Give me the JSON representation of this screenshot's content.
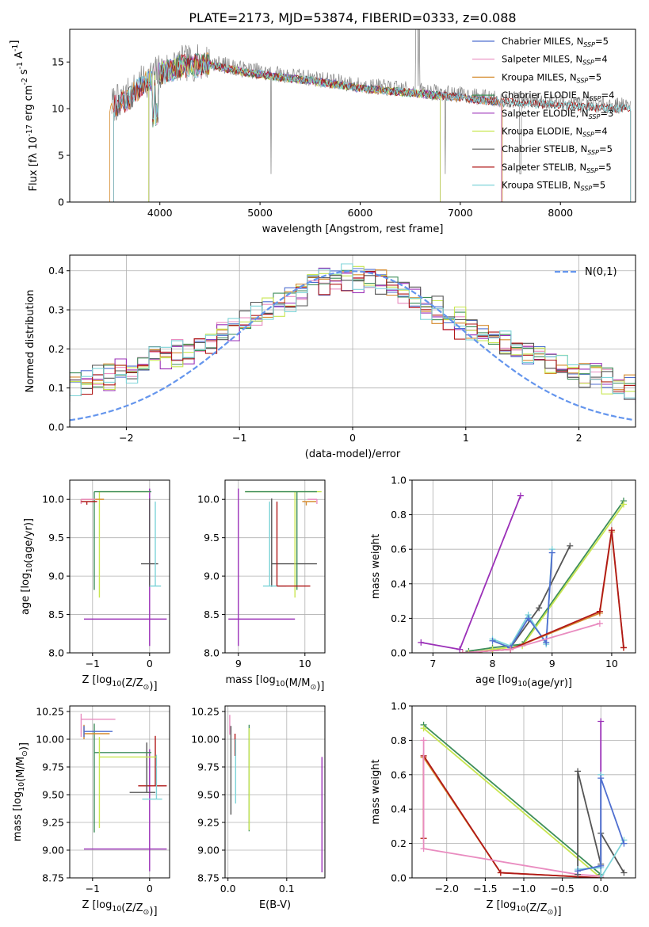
{
  "figure": {
    "title": "PLATE=2173, MJD=53874, FIBERID=0333, z=0.088"
  },
  "colors": {
    "series": [
      "#4F6FD0",
      "#E98CC0",
      "#D58A2C",
      "#3E8E5A",
      "#9B30B8",
      "#C8E650",
      "#555555",
      "#B01818",
      "#7ED4D8"
    ],
    "gauss": "#6495ED",
    "grid": "#b0b0b0"
  },
  "legend": {
    "series_names": [
      "Chabrier MILES, N_SSP=5",
      "Salpeter MILES, N_SSP=4",
      "Kroupa MILES, N_SSP=5",
      "Chabrier ELODIE, N_SSP=4",
      "Salpeter ELODIE, N_SSP=3",
      "Kroupa ELODIE, N_SSP=4",
      "Chabrier STELIB, N_SSP=5",
      "Salpeter STELIB, N_SSP=5",
      "Kroupa STELIB, N_SSP=5"
    ]
  },
  "chart_data": [
    {
      "id": "spectrum",
      "type": "line",
      "xlabel": "wavelength [Angstrom, rest frame]",
      "ylabel": "Flux [f_λ 10^-17 erg cm^-2 s^-1 A^-1]",
      "xlim": [
        3100,
        8750
      ],
      "ylim": [
        0,
        18.5
      ],
      "xticks": [
        4000,
        5000,
        6000,
        7000,
        8000
      ],
      "yticks": [
        0,
        5,
        10,
        15
      ],
      "legend_position": "upper-right",
      "continuum_anchors": {
        "x": [
          3550,
          3700,
          3850,
          4000,
          4200,
          4500,
          4800,
          5100,
          5500,
          6000,
          6500,
          7000,
          7400,
          7800,
          8200,
          8700
        ],
        "y": [
          10.5,
          11.5,
          13.0,
          14.0,
          14.8,
          15.0,
          14.3,
          13.8,
          13.3,
          12.5,
          12.0,
          11.5,
          11.0,
          10.8,
          10.5,
          10.3
        ]
      },
      "series_ranges": [
        {
          "name": "Chabrier MILES, N_SSP=5",
          "x": [
            3540,
            7410
          ]
        },
        {
          "name": "Salpeter MILES, N_SSP=4",
          "x": [
            3540,
            7410
          ]
        },
        {
          "name": "Kroupa MILES, N_SSP=5",
          "x": [
            3500,
            7420
          ]
        },
        {
          "name": "Chabrier ELODIE, N_SSP=4",
          "x": [
            3890,
            6800
          ]
        },
        {
          "name": "Salpeter ELODIE, N_SSP=3",
          "x": [
            3890,
            6800
          ]
        },
        {
          "name": "Kroupa ELODIE, N_SSP=4",
          "x": [
            3890,
            6800
          ]
        },
        {
          "name": "Chabrier STELIB, N_SSP=5",
          "x": [
            3540,
            8700
          ]
        },
        {
          "name": "Salpeter STELIB, N_SSP=5",
          "x": [
            3540,
            8700
          ]
        },
        {
          "name": "Kroupa STELIB, N_SSP=5",
          "x": [
            3540,
            8700
          ]
        }
      ],
      "data_series": {
        "name": "data",
        "color": "#808080",
        "x": [
          3520,
          8700
        ]
      }
    },
    {
      "id": "residual-hist",
      "type": "step",
      "xlabel": "(data-model)/error",
      "ylabel": "Normed distribution",
      "xlim": [
        -2.5,
        2.5
      ],
      "ylim": [
        0,
        0.44
      ],
      "xticks": [
        -2,
        -1,
        0,
        1,
        2
      ],
      "yticks": [
        0.0,
        0.1,
        0.2,
        0.3,
        0.4
      ],
      "grid": true,
      "legend_position": "upper-right",
      "gauss_label": "N(0,1)",
      "bin_width": 0.1,
      "series": [
        {
          "name": "Chabrier MILES, N_SSP=5",
          "offsets": [
            0.004,
            -0.006,
            0.008,
            -0.003,
            0.012,
            -0.01,
            0.005
          ]
        },
        {
          "name": "Salpeter MILES, N_SSP=4",
          "offsets": [
            -0.008,
            0.01,
            -0.004,
            0.014,
            -0.012,
            0.006,
            -0.002
          ]
        },
        {
          "name": "Kroupa MILES, N_SSP=5",
          "offsets": [
            0.01,
            0.002,
            -0.01,
            0.006,
            0.003,
            -0.008,
            0.011
          ]
        },
        {
          "name": "Chabrier ELODIE, N_SSP=4",
          "offsets": [
            -0.012,
            0.008,
            0.012,
            -0.01,
            0.004,
            0.009,
            -0.006
          ]
        },
        {
          "name": "Salpeter ELODIE, N_SSP=3",
          "offsets": [
            0.016,
            -0.014,
            0.018,
            -0.016,
            0.012,
            0.015,
            -0.012
          ]
        },
        {
          "name": "Kroupa ELODIE, N_SSP=4",
          "offsets": [
            -0.016,
            0.014,
            -0.018,
            0.02,
            -0.014,
            0.012,
            0.016
          ]
        },
        {
          "name": "Chabrier STELIB, N_SSP=5",
          "offsets": [
            0.006,
            0.012,
            -0.012,
            -0.006,
            0.016,
            -0.014,
            0.008
          ]
        },
        {
          "name": "Salpeter STELIB, N_SSP=5",
          "offsets": [
            -0.004,
            -0.012,
            0.006,
            0.012,
            -0.008,
            0.004,
            -0.014
          ]
        },
        {
          "name": "Kroupa STELIB, N_SSP=5",
          "offsets": [
            0.012,
            -0.004,
            0.014,
            -0.012,
            -0.006,
            -0.012,
            0.014
          ]
        }
      ]
    },
    {
      "id": "age-vs-Z",
      "type": "errorbar",
      "xlabel": "Z [log10(Z/Z_sun)]",
      "ylabel": "age [log10(age/yr)]",
      "xlim": [
        -1.4,
        0.35
      ],
      "ylim": [
        8.0,
        10.25
      ],
      "xticks": [
        -1,
        0
      ],
      "yticks": [
        8.0,
        8.5,
        9.0,
        9.5,
        10.0
      ],
      "grid": true,
      "points": [
        {
          "series": 4,
          "x": 0.0,
          "y": 8.44,
          "xerr": [
            1.15,
            0.3
          ],
          "yerr": [
            0.35,
            1.7
          ]
        },
        {
          "series": 6,
          "x": 0.0,
          "y": 9.16,
          "xerr": [
            0.15,
            0.15
          ],
          "yerr": [
            0.3,
            0.85
          ]
        },
        {
          "series": 5,
          "x": -0.88,
          "y": 10.1,
          "xerr": [
            0.0,
            0.88
          ],
          "yerr": [
            1.38,
            0.0
          ]
        },
        {
          "series": 3,
          "x": -0.97,
          "y": 10.1,
          "xerr": [
            0.0,
            1.0
          ],
          "yerr": [
            1.28,
            0.0
          ]
        },
        {
          "series": 8,
          "x": 0.1,
          "y": 8.87,
          "xerr": [
            0.1,
            0.1
          ],
          "yerr": [
            0.0,
            1.1
          ]
        },
        {
          "series": 2,
          "x": -1.2,
          "y": 10.0,
          "xerr": [
            0.0,
            0.4
          ],
          "yerr": [
            0.05,
            0.0
          ]
        },
        {
          "series": 1,
          "x": -1.2,
          "y": 10.0,
          "xerr": [
            0.0,
            0.25
          ],
          "yerr": [
            0.06,
            0.0
          ]
        },
        {
          "series": 7,
          "x": -1.1,
          "y": 9.97,
          "xerr": [
            0.1,
            0.18
          ],
          "yerr": [
            0.04,
            0.0
          ]
        }
      ]
    },
    {
      "id": "age-vs-mass",
      "type": "errorbar",
      "xlabel": "mass [log10(M/M_sun)]",
      "ylabel": "",
      "xlim": [
        8.8,
        10.3
      ],
      "ylim": [
        8.0,
        10.25
      ],
      "xticks": [
        9,
        10
      ],
      "yticks": [
        8.0,
        8.5,
        9.0,
        9.5,
        10.0
      ],
      "grid": true,
      "points": [
        {
          "series": 4,
          "x": 9.0,
          "y": 8.44,
          "xerr": [
            0.15,
            0.85
          ],
          "yerr": [
            0.35,
            1.7
          ]
        },
        {
          "series": 6,
          "x": 9.5,
          "y": 9.16,
          "xerr": [
            0.0,
            0.68
          ],
          "yerr": [
            0.3,
            0.85
          ]
        },
        {
          "series": 5,
          "x": 9.85,
          "y": 10.1,
          "xerr": [
            0.75,
            0.4
          ],
          "yerr": [
            1.38,
            0.0
          ]
        },
        {
          "series": 3,
          "x": 9.88,
          "y": 10.1,
          "xerr": [
            0.78,
            0.3
          ],
          "yerr": [
            1.28,
            0.0
          ]
        },
        {
          "series": 8,
          "x": 9.47,
          "y": 8.87,
          "xerr": [
            0.1,
            0.25
          ],
          "yerr": [
            0.0,
            1.1
          ]
        },
        {
          "series": 7,
          "x": 9.58,
          "y": 8.87,
          "xerr": [
            0.0,
            0.5
          ],
          "yerr": [
            0.0,
            1.1
          ]
        },
        {
          "series": 2,
          "x": 10.02,
          "y": 9.97,
          "xerr": [
            0.06,
            0.15
          ],
          "yerr": [
            0.05,
            0.0
          ]
        },
        {
          "series": 1,
          "x": 10.18,
          "y": 10.0,
          "xerr": [
            0.14,
            0.0
          ],
          "yerr": [
            0.06,
            0.0
          ]
        }
      ]
    },
    {
      "id": "mass-weight-vs-age",
      "type": "line",
      "xlabel": "age [log10(age/yr)]",
      "ylabel": "mass weight",
      "xlim": [
        6.65,
        10.4
      ],
      "ylim": [
        0,
        1.0
      ],
      "xticks": [
        7,
        8,
        9,
        10
      ],
      "yticks": [
        0.0,
        0.2,
        0.4,
        0.6,
        0.8,
        1.0
      ],
      "grid": true,
      "series": [
        {
          "series": 4,
          "x": [
            6.8,
            7.45,
            8.47
          ],
          "y": [
            0.06,
            0.02,
            0.91
          ]
        },
        {
          "series": 6,
          "x": [
            8.3,
            8.78,
            9.3
          ],
          "y": [
            0.03,
            0.26,
            0.62
          ]
        },
        {
          "series": 3,
          "x": [
            7.6,
            8.0,
            8.5,
            10.2
          ],
          "y": [
            0.01,
            0.03,
            0.05,
            0.88
          ]
        },
        {
          "series": 5,
          "x": [
            7.6,
            8.0,
            8.5,
            10.2
          ],
          "y": [
            0.0,
            0.02,
            0.04,
            0.86
          ]
        },
        {
          "series": 8,
          "x": [
            8.0,
            8.3,
            8.6,
            8.9,
            9.0
          ],
          "y": [
            0.08,
            0.04,
            0.22,
            0.05,
            0.6
          ]
        },
        {
          "series": 0,
          "x": [
            8.0,
            8.3,
            8.6,
            8.9,
            9.0
          ],
          "y": [
            0.07,
            0.03,
            0.2,
            0.06,
            0.58
          ]
        },
        {
          "series": 2,
          "x": [
            7.5,
            8.3,
            9.8,
            10.0,
            10.2
          ],
          "y": [
            0.0,
            0.02,
            0.23,
            0.7,
            0.03
          ]
        },
        {
          "series": 7,
          "x": [
            7.5,
            8.3,
            9.8,
            10.0,
            10.2
          ],
          "y": [
            0.0,
            0.02,
            0.24,
            0.71,
            0.03
          ]
        },
        {
          "series": 1,
          "x": [
            7.5,
            8.3,
            9.8
          ],
          "y": [
            0.0,
            0.02,
            0.17
          ]
        }
      ]
    },
    {
      "id": "mass-vs-Z",
      "type": "errorbar",
      "xlabel": "Z [log10(Z/Z_sun)]",
      "ylabel": "mass [log10(M/M_sun)]",
      "xlim": [
        -1.4,
        0.35
      ],
      "ylim": [
        8.75,
        10.3
      ],
      "xticks": [
        -1,
        0
      ],
      "yticks": [
        8.75,
        9.0,
        9.25,
        9.5,
        9.75,
        10.0,
        10.25
      ],
      "grid": true,
      "points": [
        {
          "series": 4,
          "x": 0.0,
          "y": 9.01,
          "xerr": [
            1.15,
            0.3
          ],
          "yerr": [
            0.2,
            0.9
          ]
        },
        {
          "series": 7,
          "x": 0.1,
          "y": 9.58,
          "xerr": [
            0.3,
            0.2
          ],
          "yerr": [
            0.0,
            0.45
          ]
        },
        {
          "series": 6,
          "x": -0.05,
          "y": 9.52,
          "xerr": [
            0.3,
            0.15
          ],
          "yerr": [
            0.0,
            0.45
          ]
        },
        {
          "series": 8,
          "x": 0.12,
          "y": 9.46,
          "xerr": [
            0.25,
            0.1
          ],
          "yerr": [
            0.0,
            0.4
          ]
        },
        {
          "series": 3,
          "x": -0.97,
          "y": 9.88,
          "xerr": [
            0.0,
            1.0
          ],
          "yerr": [
            0.72,
            0.26
          ]
        },
        {
          "series": 5,
          "x": -0.88,
          "y": 9.84,
          "xerr": [
            0.0,
            1.0
          ],
          "yerr": [
            0.64,
            0.18
          ]
        },
        {
          "series": 1,
          "x": -1.2,
          "y": 10.18,
          "xerr": [
            0.0,
            0.6
          ],
          "yerr": [
            0.16,
            0.05
          ]
        },
        {
          "series": 2,
          "x": -1.15,
          "y": 10.05,
          "xerr": [
            0.0,
            0.45
          ],
          "yerr": [
            0.05,
            0.08
          ]
        },
        {
          "series": 0,
          "x": -1.15,
          "y": 10.07,
          "xerr": [
            0.0,
            0.5
          ],
          "yerr": [
            0.05,
            0.05
          ]
        }
      ]
    },
    {
      "id": "mass-vs-ebv",
      "type": "errorbar",
      "xlabel": "E(B-V)",
      "ylabel": "",
      "xlim": [
        -0.005,
        0.165
      ],
      "ylim": [
        8.75,
        10.3
      ],
      "xticks": [
        0.0,
        0.1
      ],
      "yticks": [
        8.75,
        9.0,
        9.25,
        9.5,
        9.75,
        10.0,
        10.25
      ],
      "grid": true,
      "points": [
        {
          "series": 1,
          "x": 0.003,
          "y": 10.16,
          "yerr": [
            0.12,
            0.06
          ]
        },
        {
          "series": 6,
          "x": 0.005,
          "y": 9.52,
          "yerr": [
            0.2,
            0.6
          ]
        },
        {
          "series": 7,
          "x": 0.012,
          "y": 9.95,
          "yerr": [
            0.1,
            0.1
          ]
        },
        {
          "series": 8,
          "x": 0.013,
          "y": 9.8,
          "yerr": [
            0.38,
            0.2
          ]
        },
        {
          "series": 3,
          "x": 0.036,
          "y": 9.65,
          "yerr": [
            0.48,
            0.48
          ]
        },
        {
          "series": 5,
          "x": 0.036,
          "y": 9.6,
          "yerr": [
            0.42,
            0.5
          ]
        },
        {
          "series": 4,
          "x": 0.16,
          "y": 9.3,
          "yerr": [
            0.5,
            0.54
          ]
        }
      ]
    },
    {
      "id": "mass-weight-vs-Z",
      "type": "line",
      "xlabel": "Z [log10(Z/Z_sun)]",
      "ylabel": "mass weight",
      "xlim": [
        -2.45,
        0.45
      ],
      "ylim": [
        0,
        1.0
      ],
      "xticks": [
        -2.0,
        -1.5,
        -1.0,
        -0.5,
        0.0
      ],
      "yticks": [
        0.0,
        0.2,
        0.4,
        0.6,
        0.8,
        1.0
      ],
      "grid": true,
      "series": [
        {
          "series": 3,
          "x": [
            -2.3,
            0.0,
            0.0
          ],
          "y": [
            0.89,
            0.02,
            0.0
          ]
        },
        {
          "series": 5,
          "x": [
            -2.3,
            0.0
          ],
          "y": [
            0.87,
            0.0
          ]
        },
        {
          "series": 2,
          "x": [
            -2.3,
            -2.3,
            -1.3,
            0.0
          ],
          "y": [
            0.23,
            0.7,
            0.03,
            0.0
          ]
        },
        {
          "series": 7,
          "x": [
            -2.3,
            -2.3,
            -1.3,
            0.0
          ],
          "y": [
            0.23,
            0.71,
            0.03,
            0.0
          ]
        },
        {
          "series": 1,
          "x": [
            -2.3,
            -2.3,
            -0.3,
            0.0
          ],
          "y": [
            0.8,
            0.17,
            0.02,
            0.01
          ]
        },
        {
          "series": 4,
          "x": [
            0.0,
            0.0
          ],
          "y": [
            0.0,
            0.91
          ]
        },
        {
          "series": 6,
          "x": [
            -0.3,
            -0.3,
            0.0,
            0.0,
            0.3
          ],
          "y": [
            0.02,
            0.62,
            0.08,
            0.26,
            0.03
          ]
        },
        {
          "series": 8,
          "x": [
            -0.3,
            0.0,
            0.0,
            0.0,
            0.3
          ],
          "y": [
            0.05,
            0.06,
            0.6,
            0.0,
            0.22
          ]
        },
        {
          "series": 0,
          "x": [
            -0.3,
            0.0,
            0.0,
            0.3
          ],
          "y": [
            0.04,
            0.07,
            0.58,
            0.2
          ]
        }
      ]
    }
  ]
}
